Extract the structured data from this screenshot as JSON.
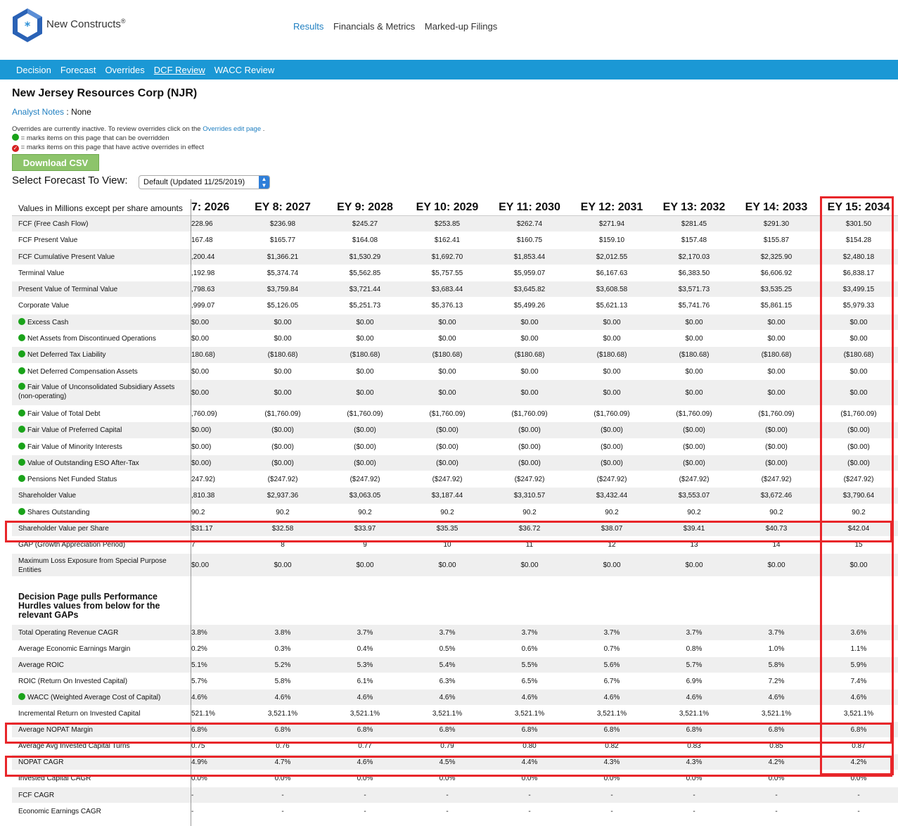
{
  "brand": {
    "name": "New Constructs",
    "reg": "®"
  },
  "topnav": [
    "Results",
    "Financials & Metrics",
    "Marked-up Filings"
  ],
  "subnav": [
    "Decision",
    "Forecast",
    "Overrides",
    "DCF Review",
    "WACC Review"
  ],
  "company": "New Jersey Resources Corp (NJR)",
  "analyst_notes": {
    "label": "Analyst Notes",
    "sep": " : ",
    "value": "None"
  },
  "overrides_note": {
    "line1_pre": "Overrides are currently inactive. To review overrides click on the",
    "line1_link": "Overrides edit page",
    "line1_post": ".",
    "green_text": "= marks items on this page that can be overridden",
    "red_text": "= marks items on this page that have active overrides in effect"
  },
  "download_csv": "Download CSV",
  "forecast_select": {
    "label": "Select Forecast To View:",
    "value": "Default (Updated 11/25/2019)"
  },
  "table": {
    "units_label": "Values in Millions except per share amounts",
    "columns": [
      "7: 2026",
      "EY 8: 2027",
      "EY 9: 2028",
      "EY 10: 2029",
      "EY 11: 2030",
      "EY 12: 2031",
      "EY 13: 2032",
      "EY 14: 2033",
      "EY 15: 2034"
    ],
    "rows": [
      {
        "label": "FCF (Free Cash Flow)",
        "dot": false,
        "values": [
          "228.96",
          "$236.98",
          "$245.27",
          "$253.85",
          "$262.74",
          "$271.94",
          "$281.45",
          "$291.30",
          "$301.50"
        ]
      },
      {
        "label": "FCF Present Value",
        "dot": false,
        "values": [
          "167.48",
          "$165.77",
          "$164.08",
          "$162.41",
          "$160.75",
          "$159.10",
          "$157.48",
          "$155.87",
          "$154.28"
        ]
      },
      {
        "label": "FCF Cumulative Present Value",
        "dot": false,
        "values": [
          ",200.44",
          "$1,366.21",
          "$1,530.29",
          "$1,692.70",
          "$1,853.44",
          "$2,012.55",
          "$2,170.03",
          "$2,325.90",
          "$2,480.18"
        ]
      },
      {
        "label": "Terminal Value",
        "dot": false,
        "values": [
          ",192.98",
          "$5,374.74",
          "$5,562.85",
          "$5,757.55",
          "$5,959.07",
          "$6,167.63",
          "$6,383.50",
          "$6,606.92",
          "$6,838.17"
        ]
      },
      {
        "label": "Present Value of Terminal Value",
        "dot": false,
        "values": [
          ",798.63",
          "$3,759.84",
          "$3,721.44",
          "$3,683.44",
          "$3,645.82",
          "$3,608.58",
          "$3,571.73",
          "$3,535.25",
          "$3,499.15"
        ]
      },
      {
        "label": "Corporate Value",
        "dot": false,
        "values": [
          ",999.07",
          "$5,126.05",
          "$5,251.73",
          "$5,376.13",
          "$5,499.26",
          "$5,621.13",
          "$5,741.76",
          "$5,861.15",
          "$5,979.33"
        ]
      },
      {
        "label": "Excess Cash",
        "dot": true,
        "values": [
          "$0.00",
          "$0.00",
          "$0.00",
          "$0.00",
          "$0.00",
          "$0.00",
          "$0.00",
          "$0.00",
          "$0.00"
        ]
      },
      {
        "label": "Net Assets from Discontinued Operations",
        "dot": true,
        "values": [
          "$0.00",
          "$0.00",
          "$0.00",
          "$0.00",
          "$0.00",
          "$0.00",
          "$0.00",
          "$0.00",
          "$0.00"
        ]
      },
      {
        "label": "Net Deferred Tax Liability",
        "dot": true,
        "values": [
          "180.68)",
          "($180.68)",
          "($180.68)",
          "($180.68)",
          "($180.68)",
          "($180.68)",
          "($180.68)",
          "($180.68)",
          "($180.68)"
        ]
      },
      {
        "label": "Net Deferred Compensation Assets",
        "dot": true,
        "values": [
          "$0.00",
          "$0.00",
          "$0.00",
          "$0.00",
          "$0.00",
          "$0.00",
          "$0.00",
          "$0.00",
          "$0.00"
        ]
      },
      {
        "label": "Fair Value of Unconsolidated Subsidiary Assets (non-operating)",
        "dot": true,
        "tall": true,
        "values": [
          "$0.00",
          "$0.00",
          "$0.00",
          "$0.00",
          "$0.00",
          "$0.00",
          "$0.00",
          "$0.00",
          "$0.00"
        ]
      },
      {
        "label": "Fair Value of Total Debt",
        "dot": true,
        "values": [
          ",760.09)",
          "($1,760.09)",
          "($1,760.09)",
          "($1,760.09)",
          "($1,760.09)",
          "($1,760.09)",
          "($1,760.09)",
          "($1,760.09)",
          "($1,760.09)"
        ]
      },
      {
        "label": "Fair Value of Preferred Capital",
        "dot": true,
        "values": [
          "$0.00)",
          "($0.00)",
          "($0.00)",
          "($0.00)",
          "($0.00)",
          "($0.00)",
          "($0.00)",
          "($0.00)",
          "($0.00)"
        ]
      },
      {
        "label": "Fair Value of Minority Interests",
        "dot": true,
        "values": [
          "$0.00)",
          "($0.00)",
          "($0.00)",
          "($0.00)",
          "($0.00)",
          "($0.00)",
          "($0.00)",
          "($0.00)",
          "($0.00)"
        ]
      },
      {
        "label": "Value of Outstanding ESO After-Tax",
        "dot": true,
        "values": [
          "$0.00)",
          "($0.00)",
          "($0.00)",
          "($0.00)",
          "($0.00)",
          "($0.00)",
          "($0.00)",
          "($0.00)",
          "($0.00)"
        ]
      },
      {
        "label": "Pensions Net Funded Status",
        "dot": true,
        "values": [
          "247.92)",
          "($247.92)",
          "($247.92)",
          "($247.92)",
          "($247.92)",
          "($247.92)",
          "($247.92)",
          "($247.92)",
          "($247.92)"
        ]
      },
      {
        "label": "Shareholder Value",
        "dot": false,
        "values": [
          ",810.38",
          "$2,937.36",
          "$3,063.05",
          "$3,187.44",
          "$3,310.57",
          "$3,432.44",
          "$3,553.07",
          "$3,672.46",
          "$3,790.64"
        ]
      },
      {
        "label": "Shares Outstanding",
        "dot": true,
        "values": [
          "90.2",
          "90.2",
          "90.2",
          "90.2",
          "90.2",
          "90.2",
          "90.2",
          "90.2",
          "90.2"
        ]
      },
      {
        "label": "Shareholder Value per Share",
        "dot": false,
        "values": [
          "$31.17",
          "$32.58",
          "$33.97",
          "$35.35",
          "$36.72",
          "$38.07",
          "$39.41",
          "$40.73",
          "$42.04"
        ]
      },
      {
        "label": "GAP (Growth Appreciation Period)",
        "dot": false,
        "values": [
          "7",
          "8",
          "9",
          "10",
          "11",
          "12",
          "13",
          "14",
          "15"
        ]
      },
      {
        "label": "Maximum Loss Exposure from Special Purpose Entities",
        "dot": false,
        "tall": true,
        "values": [
          "$0.00",
          "$0.00",
          "$0.00",
          "$0.00",
          "$0.00",
          "$0.00",
          "$0.00",
          "$0.00",
          "$0.00"
        ]
      }
    ],
    "section_title": "Decision Page pulls Performance Hurdles values from below for the relevant GAPs",
    "rows2": [
      {
        "label": "Total Operating Revenue CAGR",
        "dot": false,
        "values": [
          "3.8%",
          "3.8%",
          "3.7%",
          "3.7%",
          "3.7%",
          "3.7%",
          "3.7%",
          "3.7%",
          "3.6%"
        ]
      },
      {
        "label": "Average Economic Earnings Margin",
        "dot": false,
        "values": [
          "0.2%",
          "0.3%",
          "0.4%",
          "0.5%",
          "0.6%",
          "0.7%",
          "0.8%",
          "1.0%",
          "1.1%"
        ]
      },
      {
        "label": "Average ROIC",
        "dot": false,
        "values": [
          "5.1%",
          "5.2%",
          "5.3%",
          "5.4%",
          "5.5%",
          "5.6%",
          "5.7%",
          "5.8%",
          "5.9%"
        ]
      },
      {
        "label": "ROIC (Return On Invested Capital)",
        "dot": false,
        "values": [
          "5.7%",
          "5.8%",
          "6.1%",
          "6.3%",
          "6.5%",
          "6.7%",
          "6.9%",
          "7.2%",
          "7.4%"
        ]
      },
      {
        "label": "WACC (Weighted Average Cost of Capital)",
        "dot": true,
        "values": [
          "4.6%",
          "4.6%",
          "4.6%",
          "4.6%",
          "4.6%",
          "4.6%",
          "4.6%",
          "4.6%",
          "4.6%"
        ]
      },
      {
        "label": "Incremental Return on Invested Capital",
        "dot": false,
        "values": [
          "521.1%",
          "3,521.1%",
          "3,521.1%",
          "3,521.1%",
          "3,521.1%",
          "3,521.1%",
          "3,521.1%",
          "3,521.1%",
          "3,521.1%"
        ]
      },
      {
        "label": "Average NOPAT Margin",
        "dot": false,
        "values": [
          "6.8%",
          "6.8%",
          "6.8%",
          "6.8%",
          "6.8%",
          "6.8%",
          "6.8%",
          "6.8%",
          "6.8%"
        ]
      },
      {
        "label": "Average Avg Invested Capital Turns",
        "dot": false,
        "values": [
          "0.75",
          "0.76",
          "0.77",
          "0.79",
          "0.80",
          "0.82",
          "0.83",
          "0.85",
          "0.87"
        ]
      },
      {
        "label": "NOPAT CAGR",
        "dot": false,
        "values": [
          "4.9%",
          "4.7%",
          "4.6%",
          "4.5%",
          "4.4%",
          "4.3%",
          "4.3%",
          "4.2%",
          "4.2%"
        ]
      },
      {
        "label": "Invested Capital CAGR",
        "dot": false,
        "values": [
          "0.0%",
          "0.0%",
          "0.0%",
          "0.0%",
          "0.0%",
          "0.0%",
          "0.0%",
          "0.0%",
          "0.0%"
        ]
      },
      {
        "label": "FCF CAGR",
        "dot": false,
        "values": [
          "-",
          "-",
          "-",
          "-",
          "-",
          "-",
          "-",
          "-",
          "-"
        ]
      },
      {
        "label": "Economic Earnings CAGR",
        "dot": false,
        "values": [
          "-",
          "-",
          "-",
          "-",
          "-",
          "-",
          "-",
          "-",
          "-"
        ]
      }
    ]
  },
  "colors": {
    "accent": "#1b98d5",
    "link": "#1f7fc1",
    "highlight": "#e8262a",
    "green": "#1aa31a",
    "button": "#8dc46b"
  }
}
